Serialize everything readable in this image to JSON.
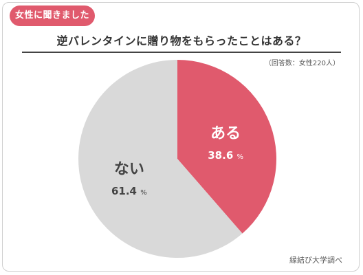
{
  "header": {
    "badge": "女性に聞きました",
    "title": "逆バレンタインに贈り物をもらったことはある？",
    "note": "（回答数：女性220人）"
  },
  "footer": {
    "source": "縁結び大学調べ"
  },
  "colors": {
    "accent": "#e05a6d",
    "slice_yes": "#e05a6d",
    "slice_no": "#d9d9d9",
    "label_yes": "#ffffff",
    "label_no": "#444444"
  },
  "chart_data": {
    "type": "pie",
    "title": "逆バレンタインに贈り物をもらったことはある？",
    "unit": "%",
    "series": [
      {
        "name": "ある",
        "value": 38.6,
        "value_label": "38.6"
      },
      {
        "name": "ない",
        "value": 61.4,
        "value_label": "61.4"
      }
    ]
  }
}
